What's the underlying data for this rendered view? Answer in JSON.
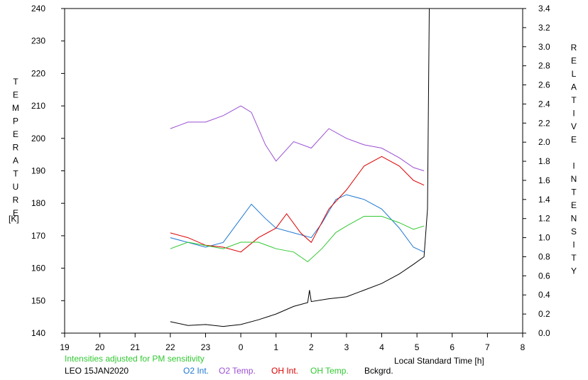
{
  "chart_data": {
    "type": "line",
    "left_axis": {
      "label": "TEMPERATURE",
      "unit": "[K]",
      "ylim": [
        140,
        240
      ],
      "ticks": [
        "140",
        "150",
        "160",
        "170",
        "180",
        "190",
        "200",
        "210",
        "220",
        "230",
        "240"
      ]
    },
    "right_axis": {
      "label": "RELATIVE INTENSITY",
      "ylim": [
        0.0,
        3.4
      ],
      "ticks": [
        "0.0",
        "0.2",
        "0.4",
        "0.6",
        "0.8",
        "1.0",
        "1.2",
        "1.4",
        "1.6",
        "1.8",
        "2.0",
        "2.2",
        "2.4",
        "2.6",
        "2.8",
        "3.0",
        "3.2",
        "3.4"
      ]
    },
    "x_axis": {
      "label": "Local Standard Time [h]",
      "ticks": [
        "19",
        "20",
        "21",
        "22",
        "23",
        "0",
        "1",
        "2",
        "3",
        "4",
        "5",
        "6",
        "7",
        "8"
      ]
    },
    "note": "Intensities adjusted for PM sensitivity",
    "station": "LEO 15JAN2020",
    "series": [
      {
        "name": "O2 Int.",
        "color": "#1e78d2",
        "axis": "right",
        "points": [
          [
            22.0,
            1.0
          ],
          [
            22.5,
            0.95
          ],
          [
            23.0,
            0.9
          ],
          [
            23.5,
            0.95
          ],
          [
            0.0,
            1.2
          ],
          [
            0.3,
            1.35
          ],
          [
            0.7,
            1.2
          ],
          [
            1.0,
            1.1
          ],
          [
            1.5,
            1.05
          ],
          [
            2.0,
            1.0
          ],
          [
            2.3,
            1.15
          ],
          [
            2.7,
            1.4
          ],
          [
            3.0,
            1.45
          ],
          [
            3.5,
            1.4
          ],
          [
            4.0,
            1.3
          ],
          [
            4.5,
            1.1
          ],
          [
            4.9,
            0.9
          ],
          [
            5.2,
            0.85
          ]
        ]
      },
      {
        "name": "O2 Temp.",
        "color": "#9b4fd2",
        "axis": "left",
        "points": [
          [
            22.0,
            203
          ],
          [
            22.5,
            205
          ],
          [
            23.0,
            205
          ],
          [
            23.5,
            207
          ],
          [
            0.0,
            210
          ],
          [
            0.3,
            208
          ],
          [
            0.7,
            198
          ],
          [
            1.0,
            193
          ],
          [
            1.5,
            199
          ],
          [
            2.0,
            197
          ],
          [
            2.5,
            203
          ],
          [
            3.0,
            200
          ],
          [
            3.5,
            198
          ],
          [
            4.0,
            197
          ],
          [
            4.5,
            194
          ],
          [
            4.9,
            191
          ],
          [
            5.2,
            190
          ]
        ]
      },
      {
        "name": "OH Int.",
        "color": "#dc0000",
        "axis": "right",
        "points": [
          [
            22.0,
            1.05
          ],
          [
            22.5,
            1.0
          ],
          [
            23.0,
            0.92
          ],
          [
            23.5,
            0.9
          ],
          [
            0.0,
            0.85
          ],
          [
            0.5,
            1.0
          ],
          [
            1.0,
            1.1
          ],
          [
            1.3,
            1.25
          ],
          [
            1.7,
            1.05
          ],
          [
            2.0,
            0.95
          ],
          [
            2.5,
            1.3
          ],
          [
            3.0,
            1.5
          ],
          [
            3.5,
            1.75
          ],
          [
            4.0,
            1.85
          ],
          [
            4.5,
            1.75
          ],
          [
            4.9,
            1.6
          ],
          [
            5.2,
            1.55
          ]
        ]
      },
      {
        "name": "OH Temp.",
        "color": "#32c832",
        "axis": "left",
        "points": [
          [
            22.0,
            166
          ],
          [
            22.5,
            168
          ],
          [
            23.0,
            167
          ],
          [
            23.5,
            166
          ],
          [
            0.0,
            168
          ],
          [
            0.5,
            168
          ],
          [
            1.0,
            166
          ],
          [
            1.5,
            165
          ],
          [
            1.9,
            162
          ],
          [
            2.3,
            166
          ],
          [
            2.7,
            171
          ],
          [
            3.0,
            173
          ],
          [
            3.5,
            176
          ],
          [
            4.0,
            176
          ],
          [
            4.5,
            174
          ],
          [
            4.9,
            172
          ],
          [
            5.2,
            173
          ]
        ]
      },
      {
        "name": "Bckgrd.",
        "color": "#000000",
        "axis": "right",
        "points": [
          [
            22.0,
            0.12
          ],
          [
            22.5,
            0.08
          ],
          [
            23.0,
            0.09
          ],
          [
            23.5,
            0.07
          ],
          [
            0.0,
            0.09
          ],
          [
            0.5,
            0.14
          ],
          [
            1.0,
            0.2
          ],
          [
            1.5,
            0.28
          ],
          [
            1.9,
            0.32
          ],
          [
            1.95,
            0.45
          ],
          [
            2.0,
            0.33
          ],
          [
            2.5,
            0.36
          ],
          [
            3.0,
            0.38
          ],
          [
            3.5,
            0.45
          ],
          [
            4.0,
            0.52
          ],
          [
            4.5,
            0.62
          ],
          [
            4.9,
            0.72
          ],
          [
            5.2,
            0.8
          ],
          [
            5.3,
            1.3
          ],
          [
            5.35,
            3.4
          ]
        ]
      }
    ]
  }
}
